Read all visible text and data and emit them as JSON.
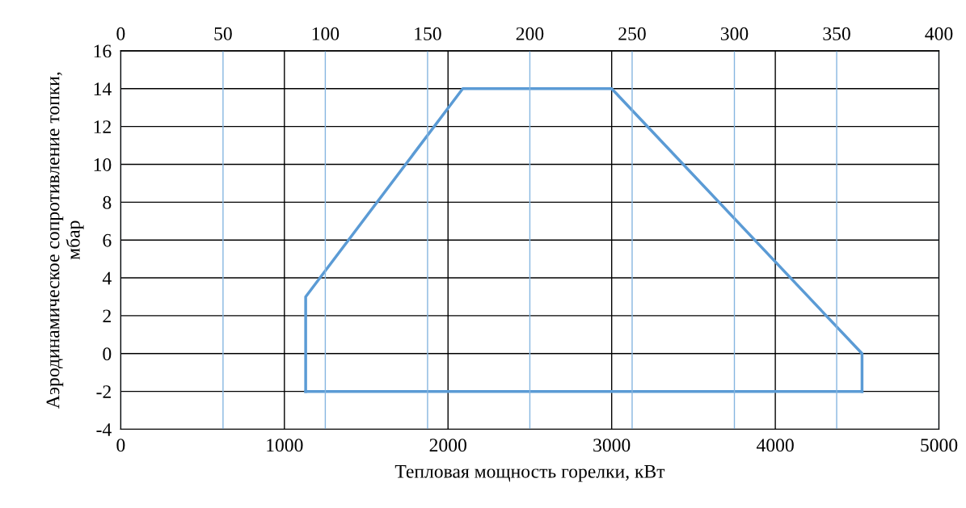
{
  "chart_data": {
    "type": "line",
    "xlabel": "Тепловая мощность горелки, кВт",
    "ylabel": "Аэродинамическое сопротивление топки,\nмбар",
    "series": [
      {
        "color": "#5b9bd5",
        "x": [
          1130,
          1130,
          2090,
          3000,
          4530,
          4530
        ],
        "values": [
          -2,
          3,
          14,
          14,
          0,
          -2
        ]
      },
      {
        "color": "#5b9bd5",
        "x": [
          1130,
          4530
        ],
        "values": [
          -2,
          -2
        ]
      }
    ],
    "xlim": [
      0,
      5000
    ],
    "xticks": [
      0,
      1000,
      2000,
      3000,
      4000,
      5000
    ],
    "x2lim": [
      0,
      400
    ],
    "x2ticks": [
      0,
      50,
      100,
      150,
      200,
      250,
      300,
      350,
      400
    ],
    "ylim": [
      -4,
      16
    ],
    "yticks": [
      -4,
      -2,
      0,
      2,
      4,
      6,
      8,
      10,
      12,
      14,
      16
    ],
    "grid": true,
    "marker": "none",
    "line_style": "solid"
  }
}
